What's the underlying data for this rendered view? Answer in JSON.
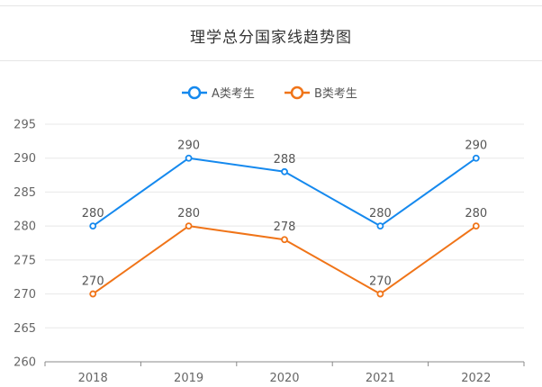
{
  "colors": {
    "series_a": "#1589ee",
    "series_b": "#f07418",
    "grid": "#e8e8e8",
    "axis": "#888888"
  },
  "chart_data": {
    "type": "line",
    "title": "理学总分国家线趋势图",
    "categories": [
      "2018",
      "2019",
      "2020",
      "2021",
      "2022"
    ],
    "ylim": [
      260,
      295
    ],
    "yticks": [
      260,
      265,
      270,
      275,
      280,
      285,
      290,
      295
    ],
    "grid": true,
    "legend_position": "top-center",
    "series": [
      {
        "name": "A类考生",
        "values": [
          280,
          290,
          288,
          280,
          290
        ],
        "color": "#1589ee"
      },
      {
        "name": "B类考生",
        "values": [
          270,
          280,
          278,
          270,
          280
        ],
        "color": "#f07418"
      }
    ]
  }
}
